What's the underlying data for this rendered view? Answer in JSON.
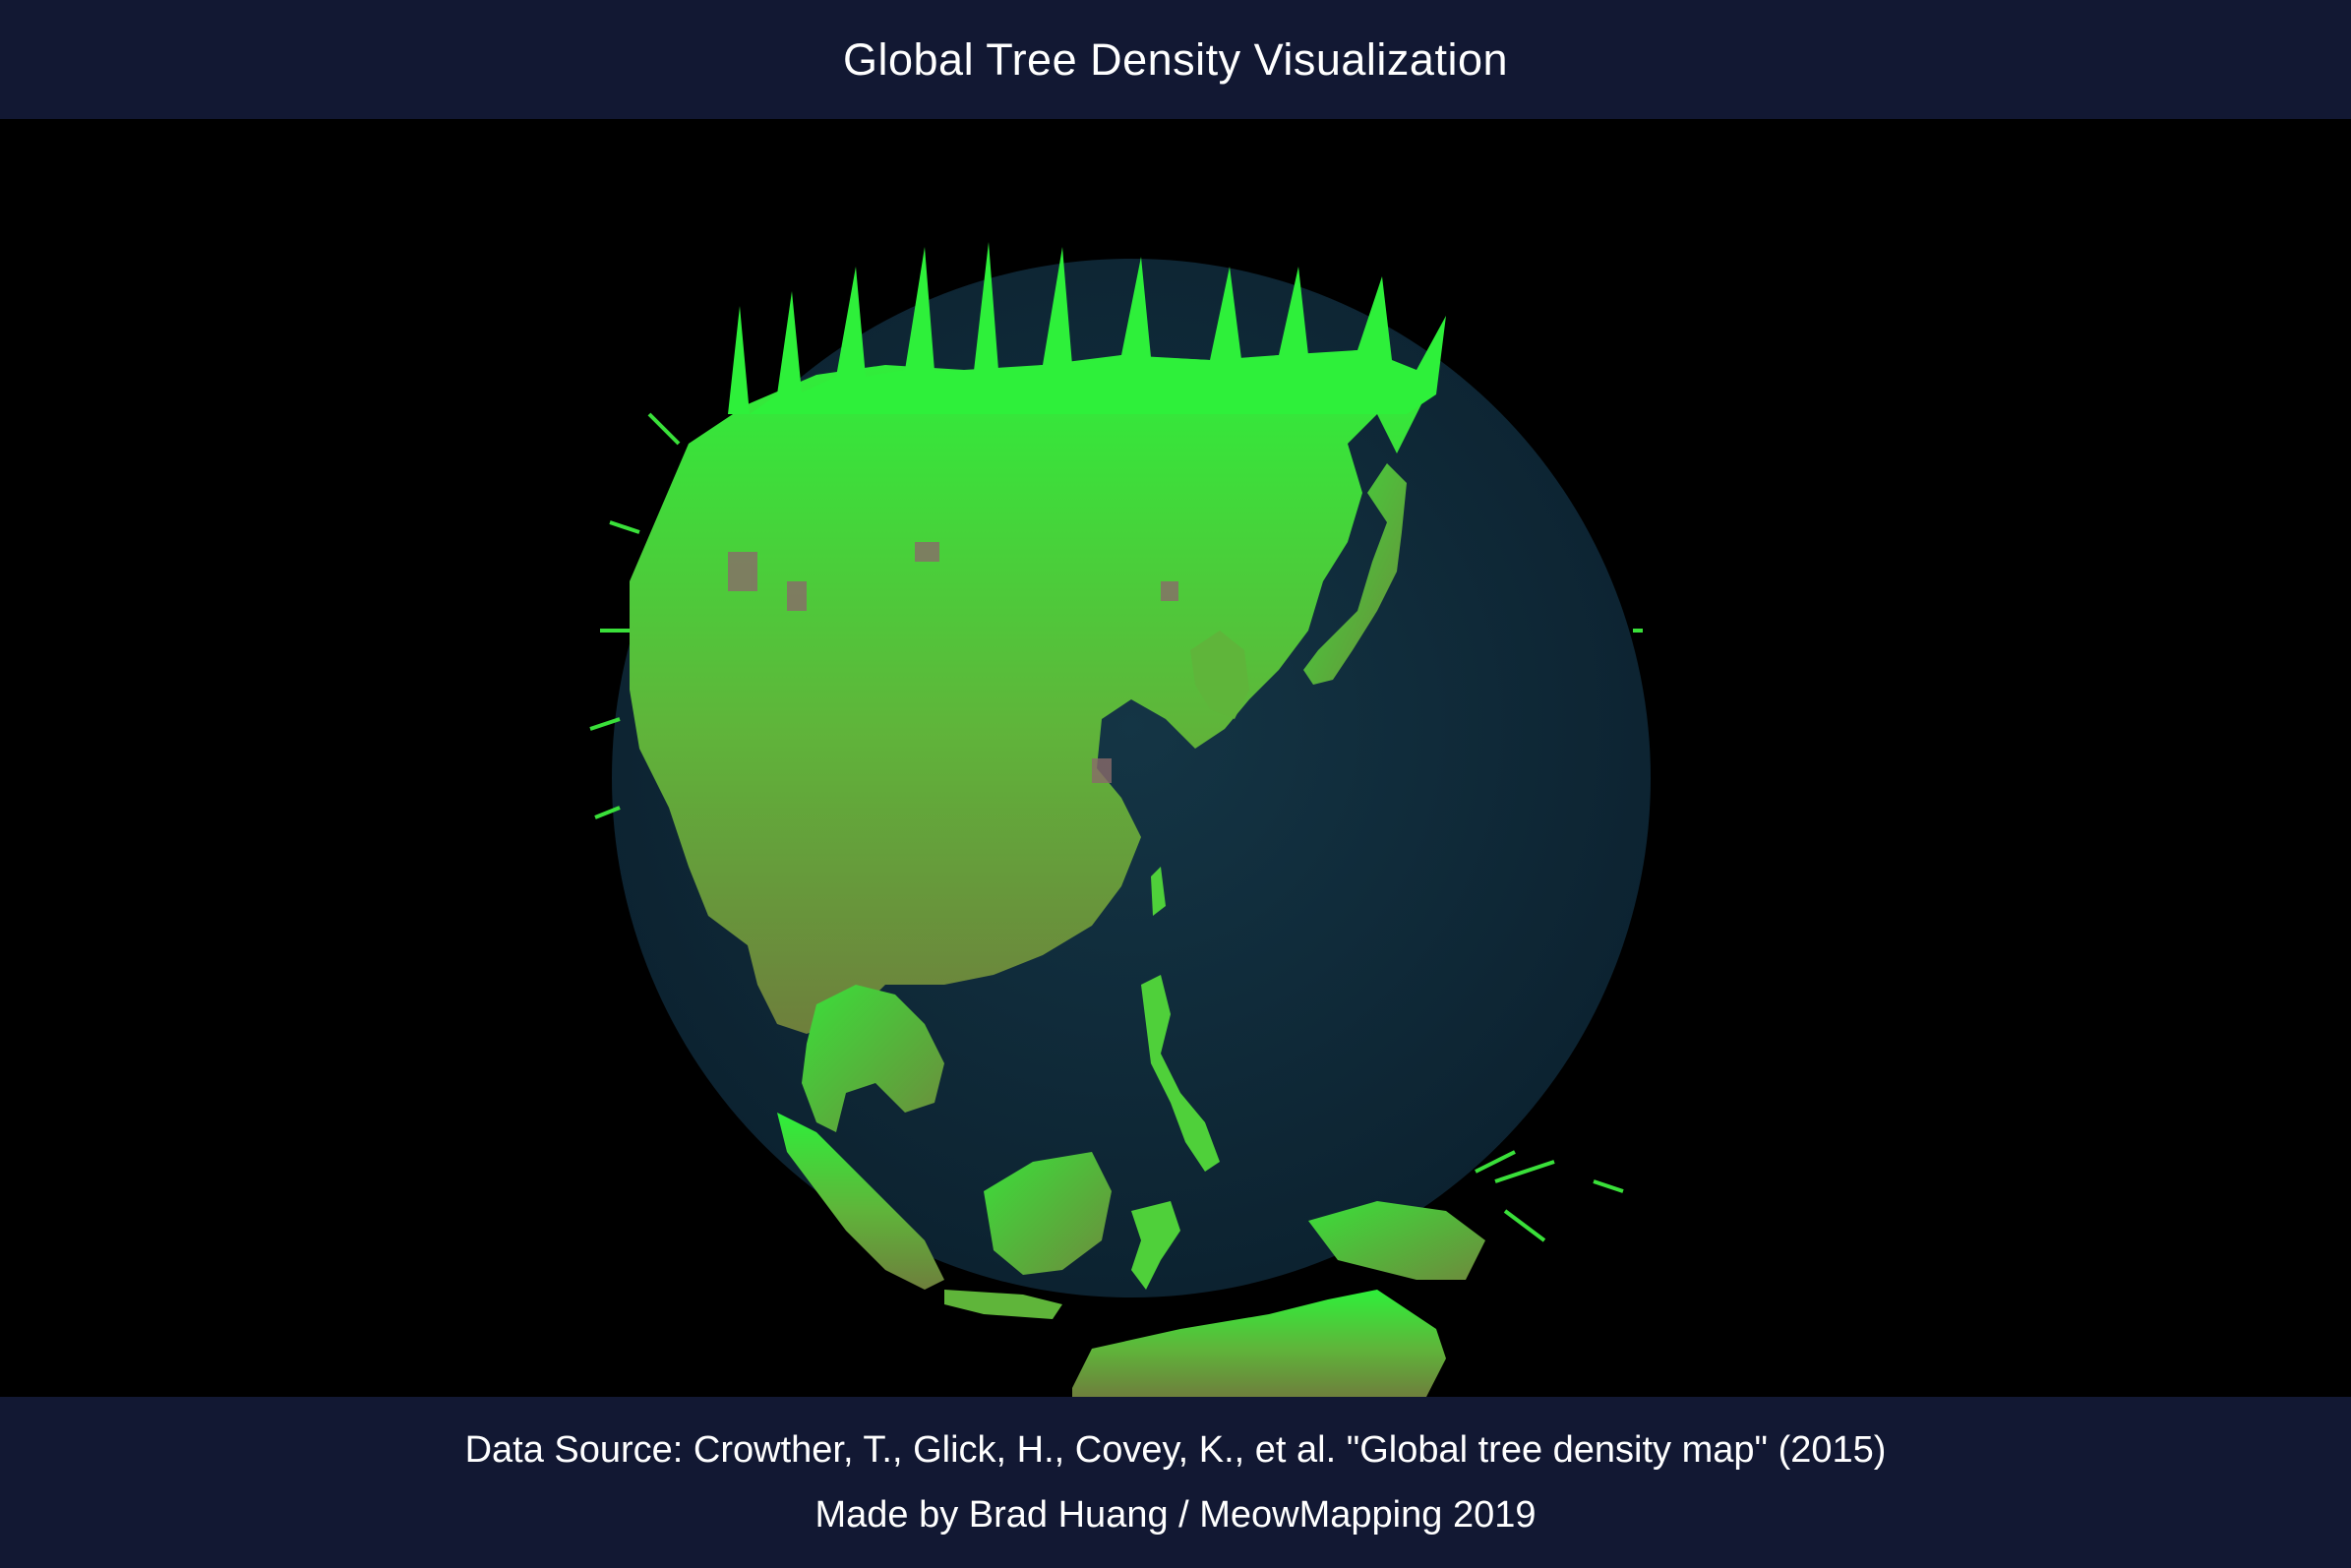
{
  "header": {
    "title": "Global Tree Density Visualization"
  },
  "map": {
    "subject": "3D extruded tree density columns over Asia and Oceania on a dark globe",
    "region": "East Asia, Southeast Asia, Australia",
    "colors": {
      "ocean": "#0e2a38",
      "ocean_rim": "#1a3a4a",
      "low_density": "#6e7f3c",
      "mid_density": "#5fb53a",
      "high_density": "#2ef03a",
      "sparse": "#8a6a6a"
    }
  },
  "footer": {
    "data_source": "Data Source: Crowther, T., Glick, H., Covey, K., et al. \"Global tree density map\" (2015)",
    "credit": "Made by Brad Huang / MeowMapping 2019"
  },
  "theme": {
    "bar_background": "#121833",
    "text_color": "#ffffff",
    "page_background": "#000000"
  }
}
